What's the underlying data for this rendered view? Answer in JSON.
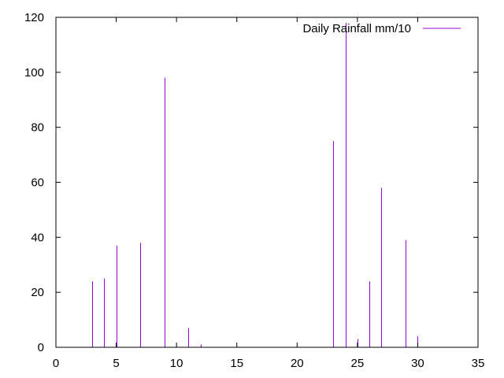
{
  "chart_data": {
    "type": "bar",
    "style": "impulses",
    "title": "",
    "xlabel": "",
    "ylabel": "",
    "xlim": [
      0,
      35
    ],
    "ylim": [
      0,
      120
    ],
    "xticks": [
      0,
      5,
      10,
      15,
      20,
      25,
      30,
      35
    ],
    "yticks": [
      0,
      20,
      40,
      60,
      80,
      100,
      120
    ],
    "grid": false,
    "legend_position": "top-right",
    "series": [
      {
        "name": "Daily Rainfall mm/10",
        "color": "#9400d3",
        "x": [
          3,
          4,
          5,
          7,
          9,
          11,
          12,
          23,
          24,
          25,
          26,
          27,
          29,
          30
        ],
        "values": [
          24,
          25,
          37,
          38,
          98,
          7,
          1,
          75,
          118,
          3,
          24,
          58,
          39,
          4
        ]
      }
    ]
  }
}
